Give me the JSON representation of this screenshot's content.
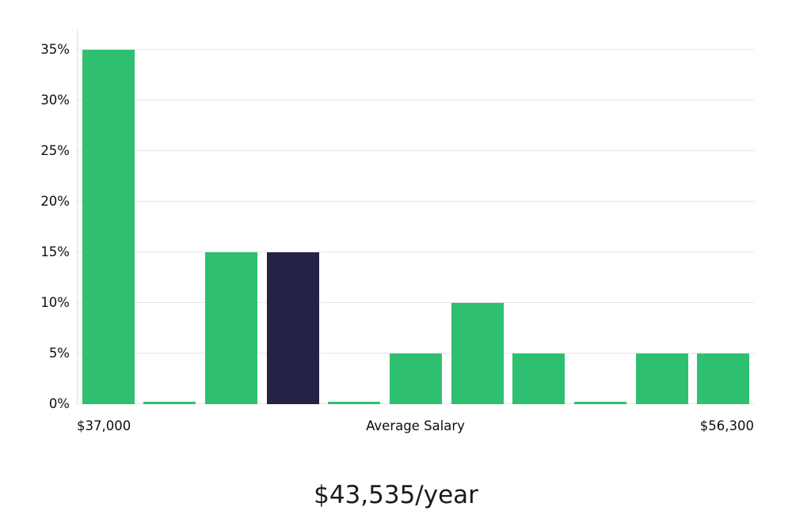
{
  "chart_data": {
    "type": "bar",
    "title": "$43,535/year",
    "xlabel": "",
    "ylabel": "",
    "ylim": [
      0,
      35
    ],
    "grid": true,
    "legend": "none",
    "yticks": [
      0,
      5,
      10,
      15,
      20,
      25,
      30,
      35
    ],
    "ytick_suffix": "%",
    "values": [
      35,
      0.2,
      15,
      15,
      0.2,
      5,
      10,
      5,
      0.2,
      5,
      5
    ],
    "highlight_index": 3,
    "highlight_meaning": "average-salary-bin",
    "x_axis_labels": {
      "left": "$37,000",
      "center": "Average Salary",
      "right": "$56,300"
    },
    "colors": {
      "bar": "#2fbf71",
      "highlight_bar": "#252345",
      "gridline": "#e6e6e6",
      "axis_line": "#dedede",
      "axis_text": "#0e0e0e",
      "title_text": "#1b1b1b"
    }
  }
}
